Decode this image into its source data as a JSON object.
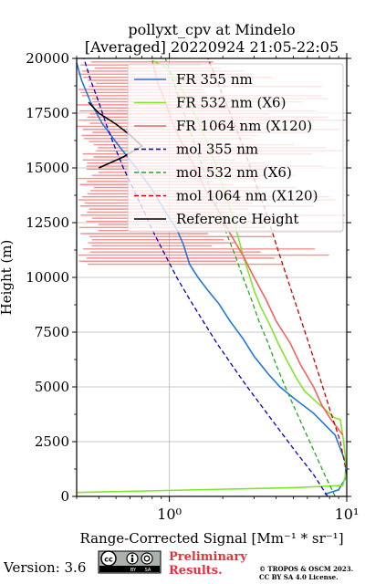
{
  "chart_data": {
    "type": "line",
    "title": "pollyxt_cpv at Mindelo",
    "subtitle": "[Averaged] 20220924 21:05-22:05",
    "xlabel": "Range-Corrected Signal [Mm⁻¹ * sr⁻¹]",
    "ylabel": "Height (m)",
    "xscale": "log",
    "xlim": [
      0.3,
      10
    ],
    "ylim": [
      0,
      20000
    ],
    "x_ticks": [
      1,
      10
    ],
    "x_tick_labels": [
      "10⁰",
      "10¹"
    ],
    "y_ticks": [
      0,
      2500,
      5000,
      7500,
      10000,
      12500,
      15000,
      17500,
      20000
    ],
    "y_tick_labels": [
      "0",
      "2500",
      "5000",
      "7500",
      "10000",
      "12500",
      "15000",
      "17500",
      "20000"
    ],
    "grid": true,
    "legend_position": "top-right",
    "series": [
      {
        "name": "FR 355 nm",
        "color": "#1f77e0",
        "style": "solid",
        "points": [
          [
            7.5,
            100
          ],
          [
            9.0,
            300
          ],
          [
            9.8,
            800
          ],
          [
            9.9,
            1500
          ],
          [
            8.6,
            2800
          ],
          [
            6.5,
            3800
          ],
          [
            5.0,
            4500
          ],
          [
            4.2,
            5000
          ],
          [
            3.6,
            5600
          ],
          [
            3.0,
            6400
          ],
          [
            2.6,
            7200
          ],
          [
            2.2,
            8000
          ],
          [
            1.9,
            8800
          ],
          [
            1.65,
            9400
          ],
          [
            1.45,
            10000
          ],
          [
            1.3,
            10600
          ],
          [
            1.2,
            11500
          ],
          [
            1.1,
            12200
          ],
          [
            0.95,
            13000
          ],
          [
            0.8,
            14000
          ],
          [
            0.65,
            15000
          ],
          [
            0.52,
            16000
          ],
          [
            0.42,
            17000
          ],
          [
            0.36,
            18000
          ],
          [
            0.32,
            19000
          ],
          [
            0.3,
            19800
          ]
        ]
      },
      {
        "name": "FR 532 nm (X6)",
        "color": "#7fe62a",
        "style": "solid",
        "points": [
          [
            0.3,
            180
          ],
          [
            5.0,
            400
          ],
          [
            9.5,
            500
          ],
          [
            10,
            1200
          ],
          [
            9.6,
            2500
          ],
          [
            9.2,
            3500
          ],
          [
            8.5,
            3600
          ],
          [
            7.0,
            4200
          ],
          [
            5.8,
            4800
          ],
          [
            5.2,
            5400
          ],
          [
            4.6,
            6200
          ],
          [
            4.1,
            7000
          ],
          [
            3.7,
            7800
          ],
          [
            3.3,
            8600
          ],
          [
            3.0,
            9400
          ],
          [
            2.8,
            10200
          ],
          [
            2.6,
            11000
          ],
          [
            2.45,
            11800
          ],
          [
            2.3,
            12600
          ],
          [
            2.15,
            13400
          ],
          [
            2.0,
            14200
          ],
          [
            1.85,
            15000
          ],
          [
            1.7,
            15800
          ],
          [
            1.55,
            16600
          ],
          [
            1.4,
            17400
          ],
          [
            1.25,
            18200
          ],
          [
            1.1,
            19000
          ],
          [
            0.95,
            19600
          ],
          [
            0.8,
            19900
          ]
        ]
      },
      {
        "name": "FR 1064 nm (X120)",
        "color": "#f56060",
        "style": "solid",
        "points": [
          [
            9.5,
            2800
          ],
          [
            8.0,
            3600
          ],
          [
            7.2,
            4200
          ],
          [
            6.5,
            5000
          ],
          [
            5.5,
            6000
          ],
          [
            4.8,
            7000
          ],
          [
            4.0,
            8000
          ],
          [
            3.5,
            9000
          ],
          [
            3.0,
            10000
          ],
          [
            2.6,
            11000
          ],
          [
            2.2,
            12000
          ],
          [
            1.9,
            13000
          ],
          [
            1.6,
            14000
          ],
          [
            1.4,
            15000
          ],
          [
            1.2,
            16000
          ],
          [
            1.05,
            17000
          ],
          [
            0.95,
            18000
          ],
          [
            0.85,
            19000
          ],
          [
            0.8,
            19900
          ]
        ]
      },
      {
        "name": "mol 355 nm",
        "color": "#0000cc",
        "style": "dashed",
        "points": [
          [
            7.8,
            0
          ],
          [
            6.5,
            1000
          ],
          [
            5.2,
            2000
          ],
          [
            4.2,
            3000
          ],
          [
            3.4,
            4000
          ],
          [
            2.75,
            5000
          ],
          [
            2.25,
            6000
          ],
          [
            1.85,
            7000
          ],
          [
            1.55,
            8000
          ],
          [
            1.3,
            9000
          ],
          [
            1.1,
            10000
          ],
          [
            0.95,
            11000
          ],
          [
            0.82,
            12000
          ],
          [
            0.72,
            13000
          ],
          [
            0.63,
            14000
          ],
          [
            0.55,
            15000
          ],
          [
            0.49,
            16000
          ],
          [
            0.44,
            17000
          ],
          [
            0.4,
            18000
          ],
          [
            0.36,
            19000
          ],
          [
            0.33,
            20000
          ]
        ]
      },
      {
        "name": "mol 532 nm (X6)",
        "color": "#22aa22",
        "style": "dashed",
        "points": [
          [
            8.6,
            0
          ],
          [
            7.5,
            1000
          ],
          [
            6.6,
            2000
          ],
          [
            5.8,
            3000
          ],
          [
            5.1,
            4000
          ],
          [
            4.5,
            5000
          ],
          [
            4.0,
            6000
          ],
          [
            3.6,
            7000
          ],
          [
            3.2,
            8000
          ],
          [
            2.9,
            9000
          ],
          [
            2.6,
            10000
          ],
          [
            2.35,
            11000
          ],
          [
            2.1,
            12000
          ],
          [
            1.9,
            13000
          ],
          [
            1.7,
            14000
          ],
          [
            1.55,
            15000
          ],
          [
            1.4,
            16000
          ],
          [
            1.27,
            17000
          ],
          [
            1.15,
            18000
          ],
          [
            1.05,
            19000
          ],
          [
            0.95,
            20000
          ]
        ]
      },
      {
        "name": "mol 1064 nm (X120)",
        "color": "#cc0000",
        "style": "dashed",
        "points": [
          [
            10,
            1000
          ],
          [
            9.2,
            2500
          ],
          [
            8.0,
            4000
          ],
          [
            7.0,
            5500
          ],
          [
            6.1,
            7000
          ],
          [
            5.3,
            8500
          ],
          [
            4.6,
            10000
          ],
          [
            4.0,
            11500
          ],
          [
            3.5,
            13000
          ],
          [
            3.0,
            14500
          ],
          [
            2.6,
            16000
          ],
          [
            2.2,
            17500
          ],
          [
            1.85,
            19000
          ],
          [
            1.65,
            20000
          ]
        ]
      },
      {
        "name": "Reference Height",
        "color": "#000000",
        "style": "solid",
        "points": [
          [
            0.4,
            15000
          ],
          [
            0.55,
            15500
          ],
          [
            0.7,
            16000
          ],
          [
            0.6,
            16500
          ],
          [
            0.5,
            17000
          ],
          [
            0.4,
            17500
          ],
          [
            0.35,
            18000
          ]
        ]
      }
    ]
  },
  "footer": {
    "version": "Version: 3.6",
    "license_badge": "cc-by-sa-badge",
    "preliminary_line1": "Preliminary",
    "preliminary_line2": "Results.",
    "preliminary_color": "#e8303a",
    "copyright_line1": "© TROPOS & OSCM 2023.",
    "copyright_line2": "CC BY SA 4.0 License."
  }
}
